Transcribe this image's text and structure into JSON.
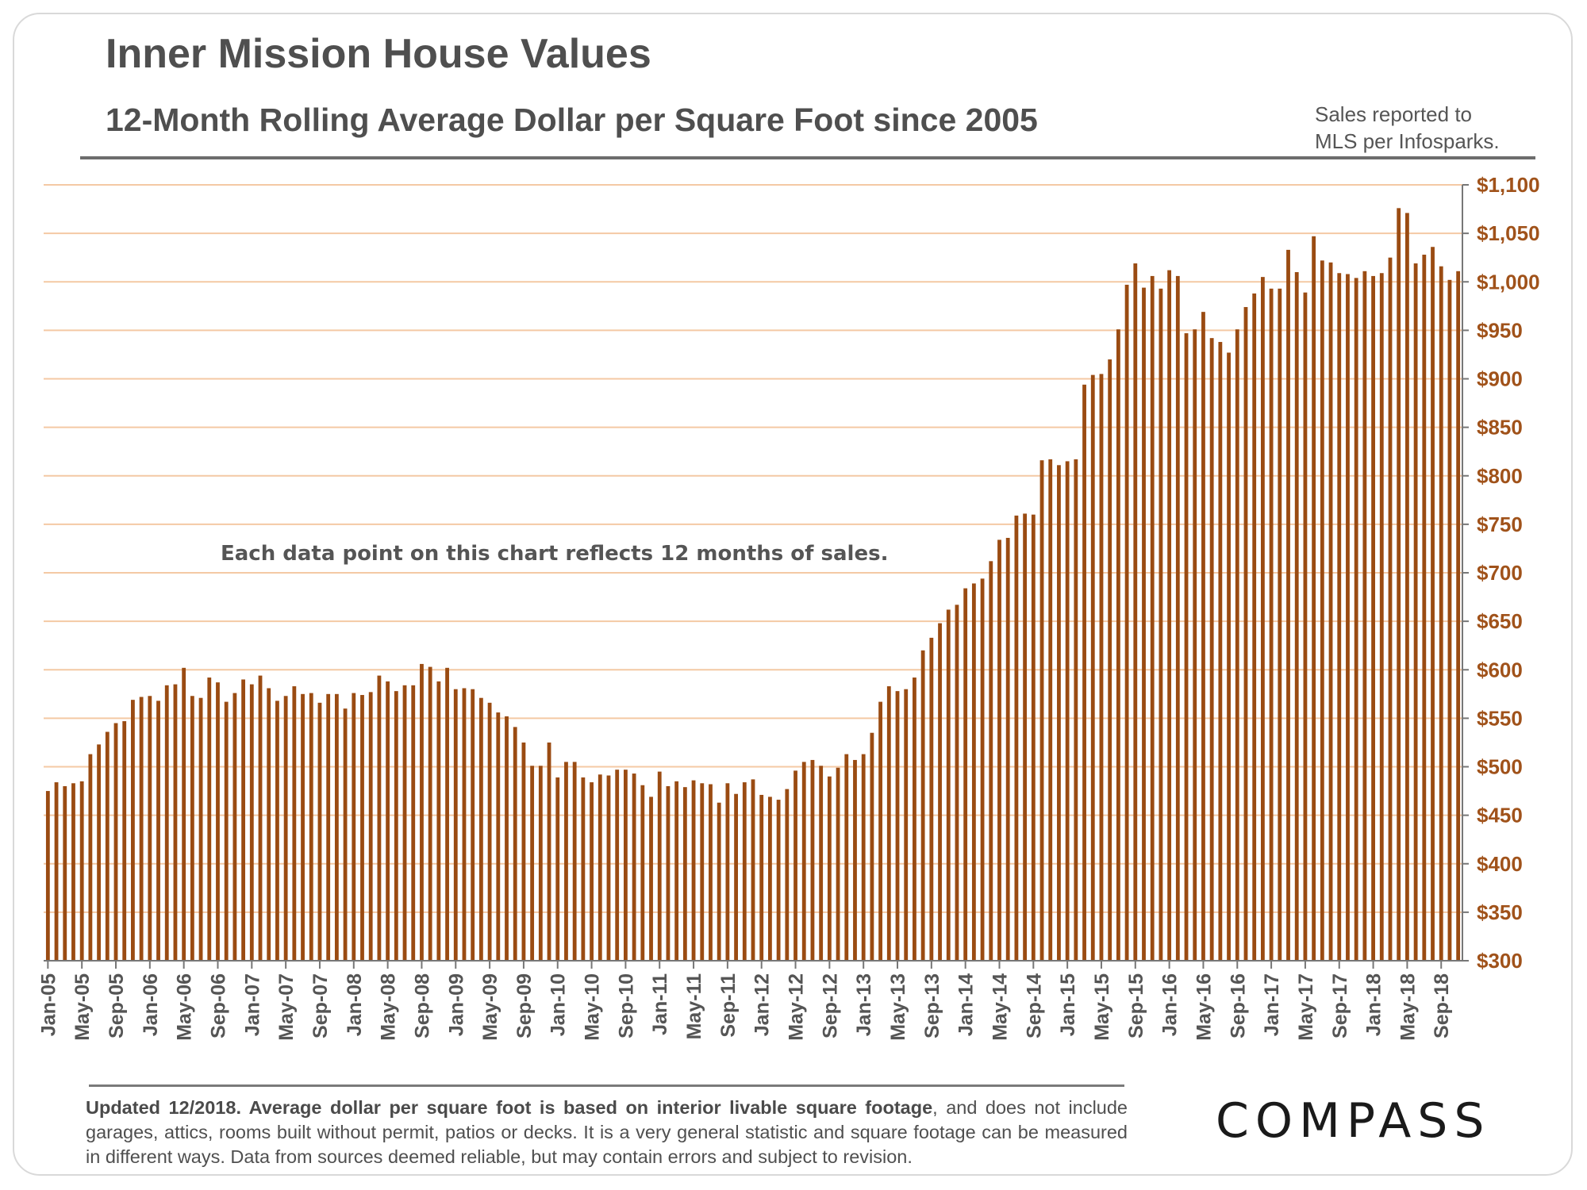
{
  "header": {
    "title": "Inner Mission House Values",
    "subtitle": "12-Month Rolling Average Dollar per Square Foot since 2005",
    "source_line1": "Sales reported to",
    "source_line2": "MLS per Infosparks."
  },
  "footer": {
    "note_bold": "Updated 12/2018. Average dollar per square foot is based on interior livable square footage",
    "note_rest": ", and does not include garages, attics, rooms built without permit, patios or decks. It is a very general statistic and square footage can be measured in different ways. Data from sources deemed reliable, but may contain errors and subject to revision.",
    "logo": "COMPASS"
  },
  "colors": {
    "bar": "#9a4b12",
    "grid": "#f4c9a4",
    "tick_label": "#a0521a",
    "axis": "#777777"
  },
  "chart_data": {
    "type": "bar",
    "annotation": "Each data point on this chart reflects 12 months of sales.",
    "ylim": [
      300,
      1100
    ],
    "y_ticks": [
      300,
      350,
      400,
      450,
      500,
      550,
      600,
      650,
      700,
      750,
      800,
      850,
      900,
      950,
      1000,
      1050,
      1100
    ],
    "y_tick_labels": [
      "$300",
      "$350",
      "$400",
      "$450",
      "$500",
      "$550",
      "$600",
      "$650",
      "$700",
      "$750",
      "$800",
      "$850",
      "$900",
      "$950",
      "$1,000",
      "$1,050",
      "$1,100"
    ],
    "x_tick_labels": [
      "Jan-05",
      "May-05",
      "Sep-05",
      "Jan-06",
      "May-06",
      "Sep-06",
      "Jan-07",
      "May-07",
      "Sep-07",
      "Jan-08",
      "May-08",
      "Sep-08",
      "Jan-09",
      "May-09",
      "Sep-09",
      "Jan-10",
      "May-10",
      "Sep-10",
      "Jan-11",
      "May-11",
      "Sep-11",
      "Jan-12",
      "May-12",
      "Sep-12",
      "Jan-13",
      "May-13",
      "Sep-13",
      "Jan-14",
      "May-14",
      "Sep-14",
      "Jan-15",
      "May-15",
      "Sep-15",
      "Jan-16",
      "May-16",
      "Sep-16",
      "Jan-17",
      "May-17",
      "Sep-17",
      "Jan-18",
      "May-18",
      "Sep-18"
    ],
    "x_tick_every": 4,
    "grid": true,
    "values": [
      475,
      484,
      480,
      483,
      485,
      513,
      523,
      536,
      545,
      547,
      569,
      572,
      573,
      568,
      584,
      585,
      602,
      573,
      571,
      592,
      587,
      567,
      576,
      590,
      585,
      594,
      581,
      568,
      573,
      583,
      575,
      576,
      566,
      575,
      575,
      560,
      576,
      574,
      577,
      594,
      588,
      578,
      584,
      584,
      606,
      603,
      588,
      602,
      580,
      581,
      580,
      571,
      566,
      556,
      552,
      541,
      525,
      501,
      501,
      525,
      489,
      505,
      505,
      489,
      484,
      492,
      491,
      497,
      497,
      493,
      481,
      469,
      495,
      480,
      485,
      479,
      486,
      483,
      482,
      463,
      483,
      472,
      484,
      487,
      471,
      469,
      466,
      477,
      496,
      505,
      507,
      501,
      490,
      499,
      513,
      507,
      513,
      535,
      567,
      583,
      578,
      580,
      592,
      620,
      633,
      648,
      662,
      667,
      684,
      689,
      694,
      712,
      734,
      736,
      759,
      761,
      760,
      816,
      817,
      811,
      815,
      817,
      894,
      904,
      905,
      920,
      951,
      997,
      1019,
      994,
      1006,
      993,
      1012,
      1006,
      947,
      951,
      969,
      942,
      938,
      927,
      951,
      974,
      988,
      1005,
      993,
      993,
      1033,
      1010,
      989,
      1047,
      1022,
      1020,
      1009,
      1008,
      1004,
      1011,
      1006,
      1009,
      1025,
      1076,
      1071,
      1019,
      1028,
      1036,
      1016,
      1002,
      1011
    ]
  }
}
